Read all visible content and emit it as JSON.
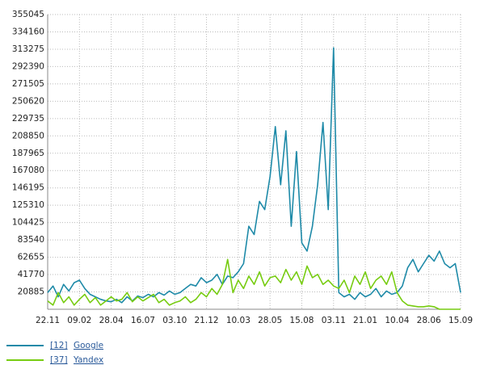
{
  "chart_data": {
    "type": "line",
    "categories": [
      "22.11",
      null,
      null,
      null,
      null,
      null,
      "09.02",
      null,
      null,
      null,
      null,
      null,
      "28.04",
      null,
      null,
      null,
      null,
      null,
      "16.07",
      null,
      null,
      null,
      null,
      null,
      "03.10",
      null,
      null,
      null,
      null,
      null,
      "21.12",
      null,
      null,
      null,
      null,
      null,
      "10.03",
      null,
      null,
      null,
      null,
      null,
      "28.05",
      null,
      null,
      null,
      null,
      null,
      "15.08",
      null,
      null,
      null,
      null,
      null,
      "03.11",
      null,
      null,
      null,
      null,
      null,
      "21.01",
      null,
      null,
      null,
      null,
      null,
      "10.04",
      null,
      null,
      null,
      null,
      null,
      "28.06",
      null,
      null,
      null,
      null,
      null,
      "15.09"
    ],
    "series": [
      {
        "name": "Google",
        "tag": "[12]",
        "color": "#1e8aa8",
        "values": [
          20000,
          28000,
          15000,
          30000,
          22000,
          32000,
          35000,
          25000,
          18000,
          15000,
          12000,
          10000,
          9000,
          12000,
          8000,
          15000,
          10000,
          16000,
          14000,
          18000,
          15000,
          20000,
          17000,
          22000,
          18000,
          20000,
          25000,
          30000,
          28000,
          38000,
          32000,
          35000,
          42000,
          30000,
          40000,
          38000,
          45000,
          55000,
          100000,
          90000,
          130000,
          120000,
          160000,
          220000,
          150000,
          215000,
          100000,
          190000,
          80000,
          70000,
          100000,
          150000,
          225000,
          120000,
          315000,
          20000,
          15000,
          18000,
          12000,
          20000,
          15000,
          18000,
          25000,
          15000,
          22000,
          18000,
          20000,
          28000,
          50000,
          60000,
          45000,
          55000,
          65000,
          58000,
          70000,
          55000,
          50000,
          55000,
          20000
        ]
      },
      {
        "name": "Yandex",
        "tag": "[37]",
        "color": "#77cc11",
        "values": [
          10000,
          5000,
          20000,
          8000,
          15000,
          5000,
          12000,
          18000,
          8000,
          14000,
          5000,
          10000,
          15000,
          10000,
          12000,
          20000,
          9000,
          15000,
          10000,
          14000,
          18000,
          8000,
          12000,
          5000,
          8000,
          10000,
          15000,
          8000,
          12000,
          20000,
          15000,
          25000,
          18000,
          30000,
          60000,
          20000,
          35000,
          25000,
          40000,
          30000,
          45000,
          28000,
          38000,
          40000,
          32000,
          48000,
          35000,
          45000,
          30000,
          52000,
          38000,
          42000,
          30000,
          35000,
          28000,
          25000,
          35000,
          20000,
          40000,
          30000,
          45000,
          25000,
          35000,
          40000,
          30000,
          45000,
          20000,
          10000,
          5000,
          4000,
          3000,
          3000,
          4000,
          3000,
          0,
          0,
          0,
          0,
          0
        ]
      }
    ],
    "ylim": [
      0,
      355045
    ],
    "yticks": [
      20885,
      41770,
      62655,
      83540,
      104425,
      125310,
      146195,
      167080,
      187965,
      208850,
      229735,
      250620,
      271505,
      292390,
      313275,
      334160,
      355045
    ],
    "grid": true
  }
}
